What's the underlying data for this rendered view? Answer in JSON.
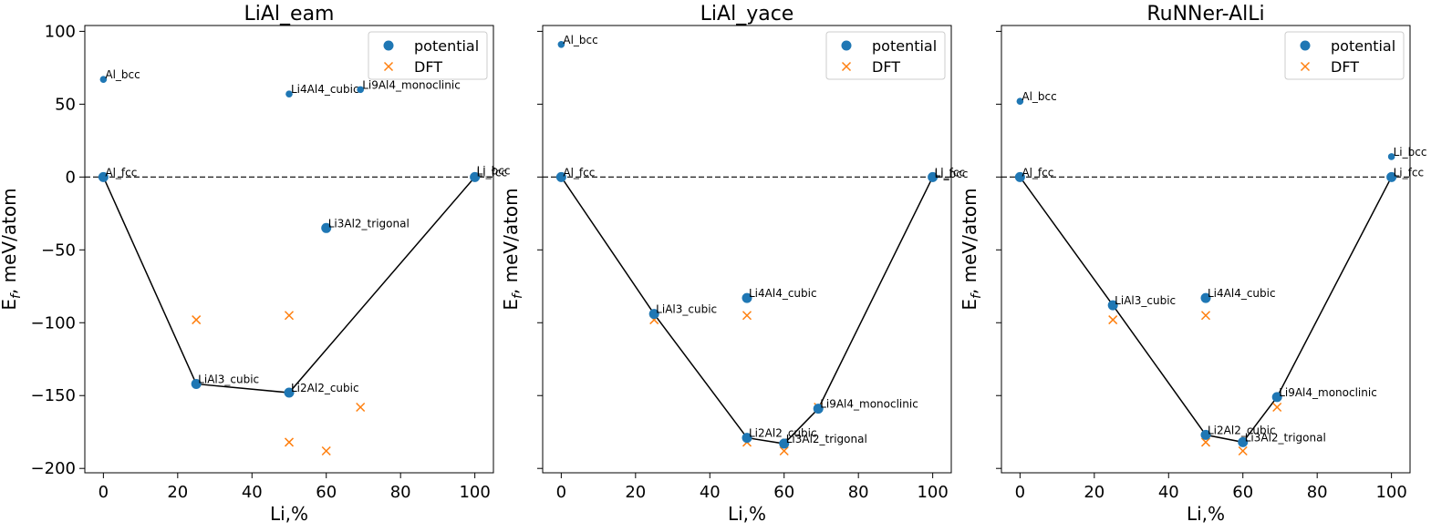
{
  "figure": {
    "ylabel_main": "E",
    "ylabel_sub": "f",
    "ylabel_rest": ", meV/atom",
    "xlabel": "Li,%",
    "xticks": [
      0,
      20,
      40,
      60,
      80,
      100
    ],
    "yticks": [
      -200,
      -150,
      -100,
      -50,
      0,
      50,
      100
    ],
    "xlim": [
      -5,
      105
    ],
    "ylim": [
      -203,
      104
    ],
    "hull_reference_line": 0
  },
  "colors": {
    "potential": "#1f77b4",
    "dft": "#ff7f0e",
    "hull": "#000000"
  },
  "legend": {
    "position": "top-right",
    "potential_label": "potential",
    "dft_label": "DFT"
  },
  "chart_data": [
    {
      "type": "scatter",
      "title": "LiAl_eam",
      "xlabel": "Li,%",
      "ylabel": "E_f, meV/atom",
      "series": [
        {
          "name": "potential",
          "points": [
            {
              "label": "Al_bcc",
              "x": 0,
              "y": 67,
              "on_hull": false
            },
            {
              "label": "Al_fcc",
              "x": 0,
              "y": 0,
              "on_hull": true
            },
            {
              "label": "Li4Al4_cubic",
              "x": 50,
              "y": 57,
              "on_hull": false
            },
            {
              "label": "Li9Al4_monoclinic",
              "x": 69.2,
              "y": 60,
              "on_hull": false
            },
            {
              "label": "Li_bcc",
              "x": 100,
              "y": 1,
              "on_hull": false
            },
            {
              "label": "Li_fcc",
              "x": 100,
              "y": 0,
              "on_hull": true
            },
            {
              "label": "Li3Al2_trigonal",
              "x": 60,
              "y": -35,
              "on_hull": true
            },
            {
              "label": "LiAl3_cubic",
              "x": 25,
              "y": -142,
              "on_hull": true
            },
            {
              "label": "Li2Al2_cubic",
              "x": 50,
              "y": -148,
              "on_hull": true
            }
          ]
        },
        {
          "name": "DFT",
          "points": [
            {
              "x": 25,
              "y": -98
            },
            {
              "x": 50,
              "y": -95
            },
            {
              "x": 50,
              "y": -182
            },
            {
              "x": 60,
              "y": -188
            },
            {
              "x": 69.2,
              "y": -158
            }
          ]
        }
      ],
      "hull": [
        [
          0,
          0
        ],
        [
          25,
          -142
        ],
        [
          50,
          -148
        ],
        [
          100,
          0
        ]
      ]
    },
    {
      "type": "scatter",
      "title": "LiAl_yace",
      "xlabel": "Li,%",
      "ylabel": "E_f, meV/atom",
      "series": [
        {
          "name": "potential",
          "points": [
            {
              "label": "Al_bcc",
              "x": 0,
              "y": 91,
              "on_hull": false
            },
            {
              "label": "Al_fcc",
              "x": 0,
              "y": 0,
              "on_hull": true
            },
            {
              "label": "Li_fcc",
              "x": 100,
              "y": 0,
              "on_hull": true
            },
            {
              "label": "Li_bcc",
              "x": 100,
              "y": -1,
              "on_hull": false
            },
            {
              "label": "LiAl3_cubic",
              "x": 25,
              "y": -94,
              "on_hull": true
            },
            {
              "label": "Li4Al4_cubic",
              "x": 50,
              "y": -83,
              "on_hull": true
            },
            {
              "label": "Li9Al4_monoclinic",
              "x": 69.2,
              "y": -159,
              "on_hull": true
            },
            {
              "label": "Li2Al2_cubic",
              "x": 50,
              "y": -179,
              "on_hull": true
            },
            {
              "label": "Li3Al2_trigonal",
              "x": 60,
              "y": -183,
              "on_hull": true
            }
          ]
        },
        {
          "name": "DFT",
          "points": [
            {
              "x": 25,
              "y": -98
            },
            {
              "x": 50,
              "y": -95
            },
            {
              "x": 50,
              "y": -182
            },
            {
              "x": 60,
              "y": -188
            },
            {
              "x": 69.2,
              "y": -158
            }
          ]
        }
      ],
      "hull": [
        [
          0,
          0
        ],
        [
          25,
          -94
        ],
        [
          50,
          -179
        ],
        [
          60,
          -183
        ],
        [
          69.2,
          -159
        ],
        [
          100,
          0
        ]
      ]
    },
    {
      "type": "scatter",
      "title": "RuNNer-AlLi",
      "xlabel": "Li,%",
      "ylabel": "E_f, meV/atom",
      "series": [
        {
          "name": "potential",
          "points": [
            {
              "label": "Al_bcc",
              "x": 0,
              "y": 52,
              "on_hull": false
            },
            {
              "label": "Al_fcc",
              "x": 0,
              "y": 0,
              "on_hull": true
            },
            {
              "label": "Li_bcc",
              "x": 100,
              "y": 14,
              "on_hull": false
            },
            {
              "label": "Li_fcc",
              "x": 100,
              "y": 0,
              "on_hull": true
            },
            {
              "label": "LiAl3_cubic",
              "x": 25,
              "y": -88,
              "on_hull": true
            },
            {
              "label": "Li4Al4_cubic",
              "x": 50,
              "y": -83,
              "on_hull": true
            },
            {
              "label": "Li9Al4_monoclinic",
              "x": 69.2,
              "y": -151,
              "on_hull": true
            },
            {
              "label": "Li2Al2_cubic",
              "x": 50,
              "y": -177,
              "on_hull": true
            },
            {
              "label": "Li3Al2_trigonal",
              "x": 60,
              "y": -182,
              "on_hull": true
            }
          ]
        },
        {
          "name": "DFT",
          "points": [
            {
              "x": 25,
              "y": -98
            },
            {
              "x": 50,
              "y": -95
            },
            {
              "x": 50,
              "y": -182
            },
            {
              "x": 60,
              "y": -188
            },
            {
              "x": 69.2,
              "y": -158
            }
          ]
        }
      ],
      "hull": [
        [
          0,
          0
        ],
        [
          25,
          -88
        ],
        [
          50,
          -177
        ],
        [
          60,
          -182
        ],
        [
          69.2,
          -151
        ],
        [
          100,
          0
        ]
      ]
    }
  ]
}
